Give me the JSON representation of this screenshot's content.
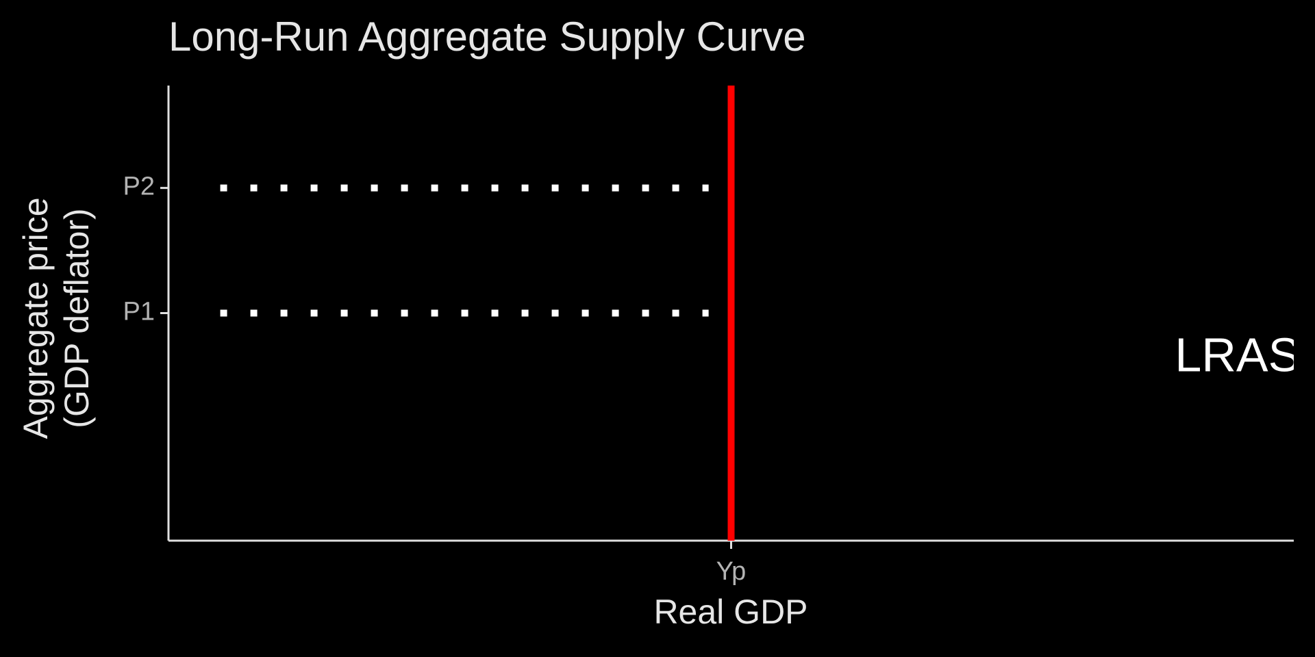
{
  "chart_data": {
    "type": "line",
    "title": "Long-Run Aggregate Supply Curve",
    "x_label": "Real GDP",
    "y_label": [
      "Aggregate price",
      "(GDP deflator)"
    ],
    "xlim": [
      0,
      10
    ],
    "ylim": [
      0,
      10
    ],
    "xticks": [
      {
        "value": 5,
        "label": "Yp"
      }
    ],
    "yticks": [
      {
        "value": 5,
        "label": "P1"
      },
      {
        "value": 7.75,
        "label": "P2"
      }
    ],
    "grid": false,
    "series": [
      {
        "color": "#ff0000",
        "style": "solid",
        "x": [
          5,
          5
        ],
        "values": [
          0,
          10
        ]
      },
      {
        "color": "#ffffff",
        "style": "dotted",
        "x": [
          0.46,
          4.8
        ],
        "values": [
          7.75,
          7.75
        ]
      },
      {
        "color": "#ffffff",
        "style": "dotted",
        "x": [
          0.46,
          4.8
        ],
        "values": [
          5,
          5
        ]
      }
    ],
    "annotations": [
      {
        "text": "LRAS",
        "x": 9.5,
        "y": 4
      }
    ]
  }
}
